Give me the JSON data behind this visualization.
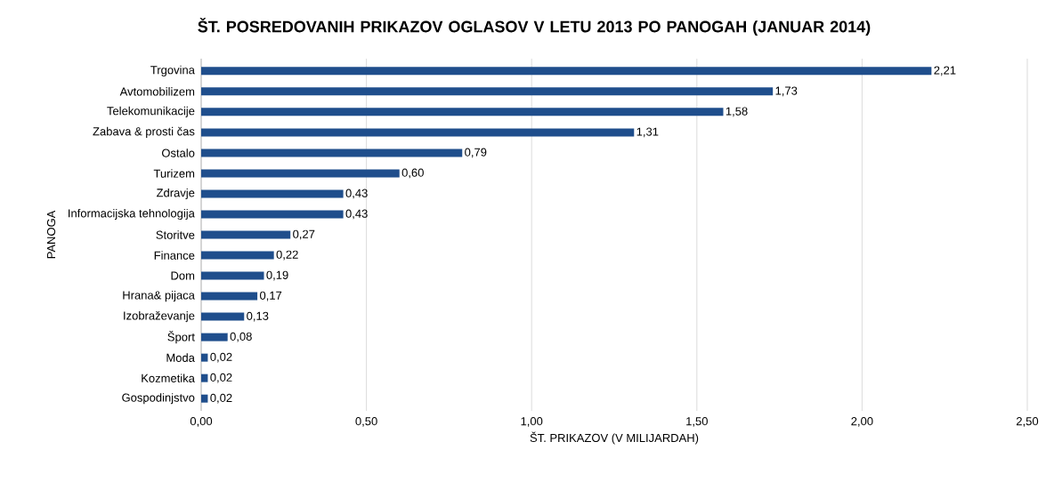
{
  "chart_data": {
    "type": "bar",
    "orientation": "horizontal",
    "title": "ŠT. POSREDOVANIH PRIKAZOV OGLASOV V LETU 2013 PO PANOGAH (JANUAR 2014)",
    "xlabel": "ŠT. PRIKAZOV (V MILIJARDAH)",
    "ylabel": "PANOGA",
    "categories": [
      "Trgovina",
      "Avtomobilizem",
      "Telekomunikacije",
      "Zabava & prosti čas",
      "Ostalo",
      "Turizem",
      "Zdravje",
      "Informacijska tehnologija",
      "Storitve",
      "Finance",
      "Dom",
      "Hrana& pijaca",
      "Izobraževanje",
      "Šport",
      "Moda",
      "Kozmetika",
      "Gospodinjstvo"
    ],
    "values": [
      2.21,
      1.73,
      1.58,
      1.31,
      0.79,
      0.6,
      0.43,
      0.43,
      0.27,
      0.22,
      0.19,
      0.17,
      0.13,
      0.08,
      0.02,
      0.02,
      0.02
    ],
    "value_labels": [
      "2,21",
      "1,73",
      "1,58",
      "1,31",
      "0,79",
      "0,60",
      "0,43",
      "0,43",
      "0,27",
      "0,22",
      "0,19",
      "0,17",
      "0,13",
      "0,08",
      "0,02",
      "0,02",
      "0,02"
    ],
    "color": "#1f4e8c",
    "xlim": [
      0,
      2.5
    ],
    "xticks": [
      {
        "value": 0,
        "label": "0,00"
      },
      {
        "value": 0.5,
        "label": "0,50"
      },
      {
        "value": 1,
        "label": "1,00"
      },
      {
        "value": 1.5,
        "label": "1,50"
      },
      {
        "value": 2,
        "label": "2,00"
      },
      {
        "value": 2.5,
        "label": "2,50"
      }
    ],
    "grid": "x"
  }
}
